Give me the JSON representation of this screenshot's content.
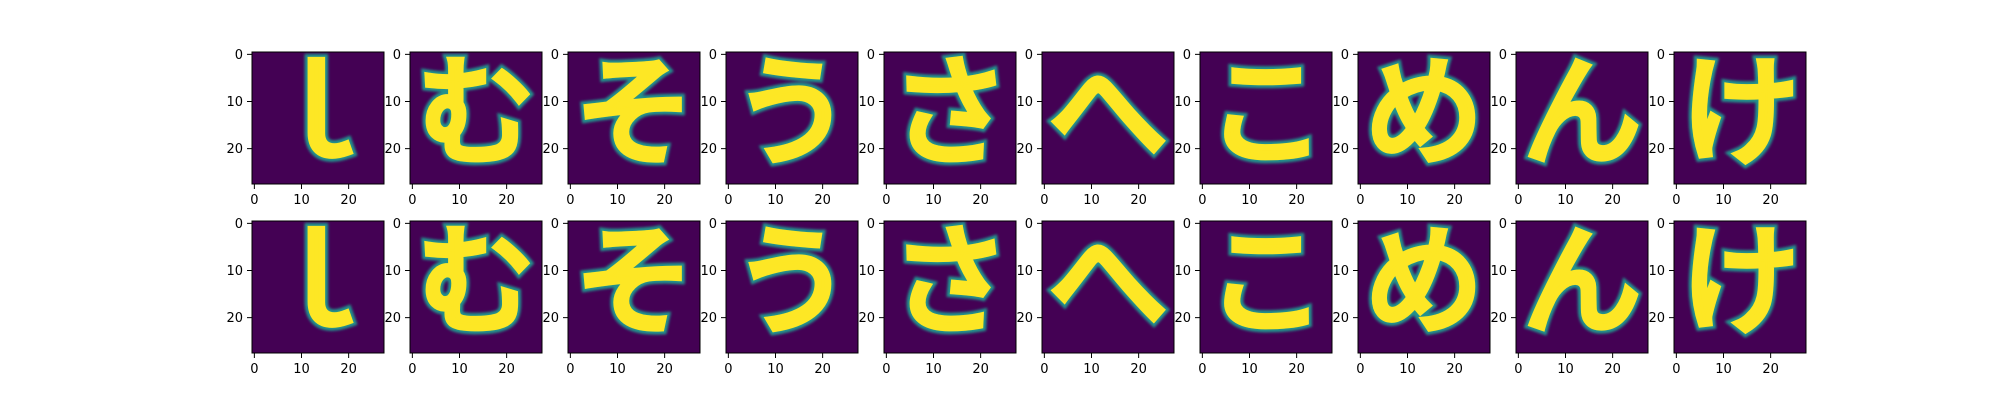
{
  "chart_data": {
    "type": "heatmap",
    "layout": "2x10 image grid",
    "colormap": "viridis",
    "background_color": "#440154",
    "stroke_color": "#fde725",
    "mid_color": "#21918c",
    "image_size": [
      28,
      28
    ],
    "xlim": [
      0,
      27
    ],
    "ylim": [
      27,
      0
    ],
    "xticks": [
      0,
      10,
      20
    ],
    "yticks": [
      0,
      10,
      20
    ],
    "rows": [
      {
        "images": [
          {
            "glyph": "ｌ"
          },
          {
            "glyph": "む"
          },
          {
            "glyph": "そ"
          },
          {
            "glyph": "う"
          },
          {
            "glyph": "さ"
          },
          {
            "glyph": "へ"
          },
          {
            "glyph": "こ"
          },
          {
            "glyph": "め"
          },
          {
            "glyph": "ん"
          },
          {
            "glyph": "け"
          }
        ]
      },
      {
        "images": [
          {
            "glyph": "ｌ"
          },
          {
            "glyph": "む"
          },
          {
            "glyph": "そ"
          },
          {
            "glyph": "う"
          },
          {
            "glyph": "さ"
          },
          {
            "glyph": "へ"
          },
          {
            "glyph": "こ"
          },
          {
            "glyph": "め"
          },
          {
            "glyph": "ん"
          },
          {
            "glyph": "け"
          }
        ]
      }
    ]
  }
}
